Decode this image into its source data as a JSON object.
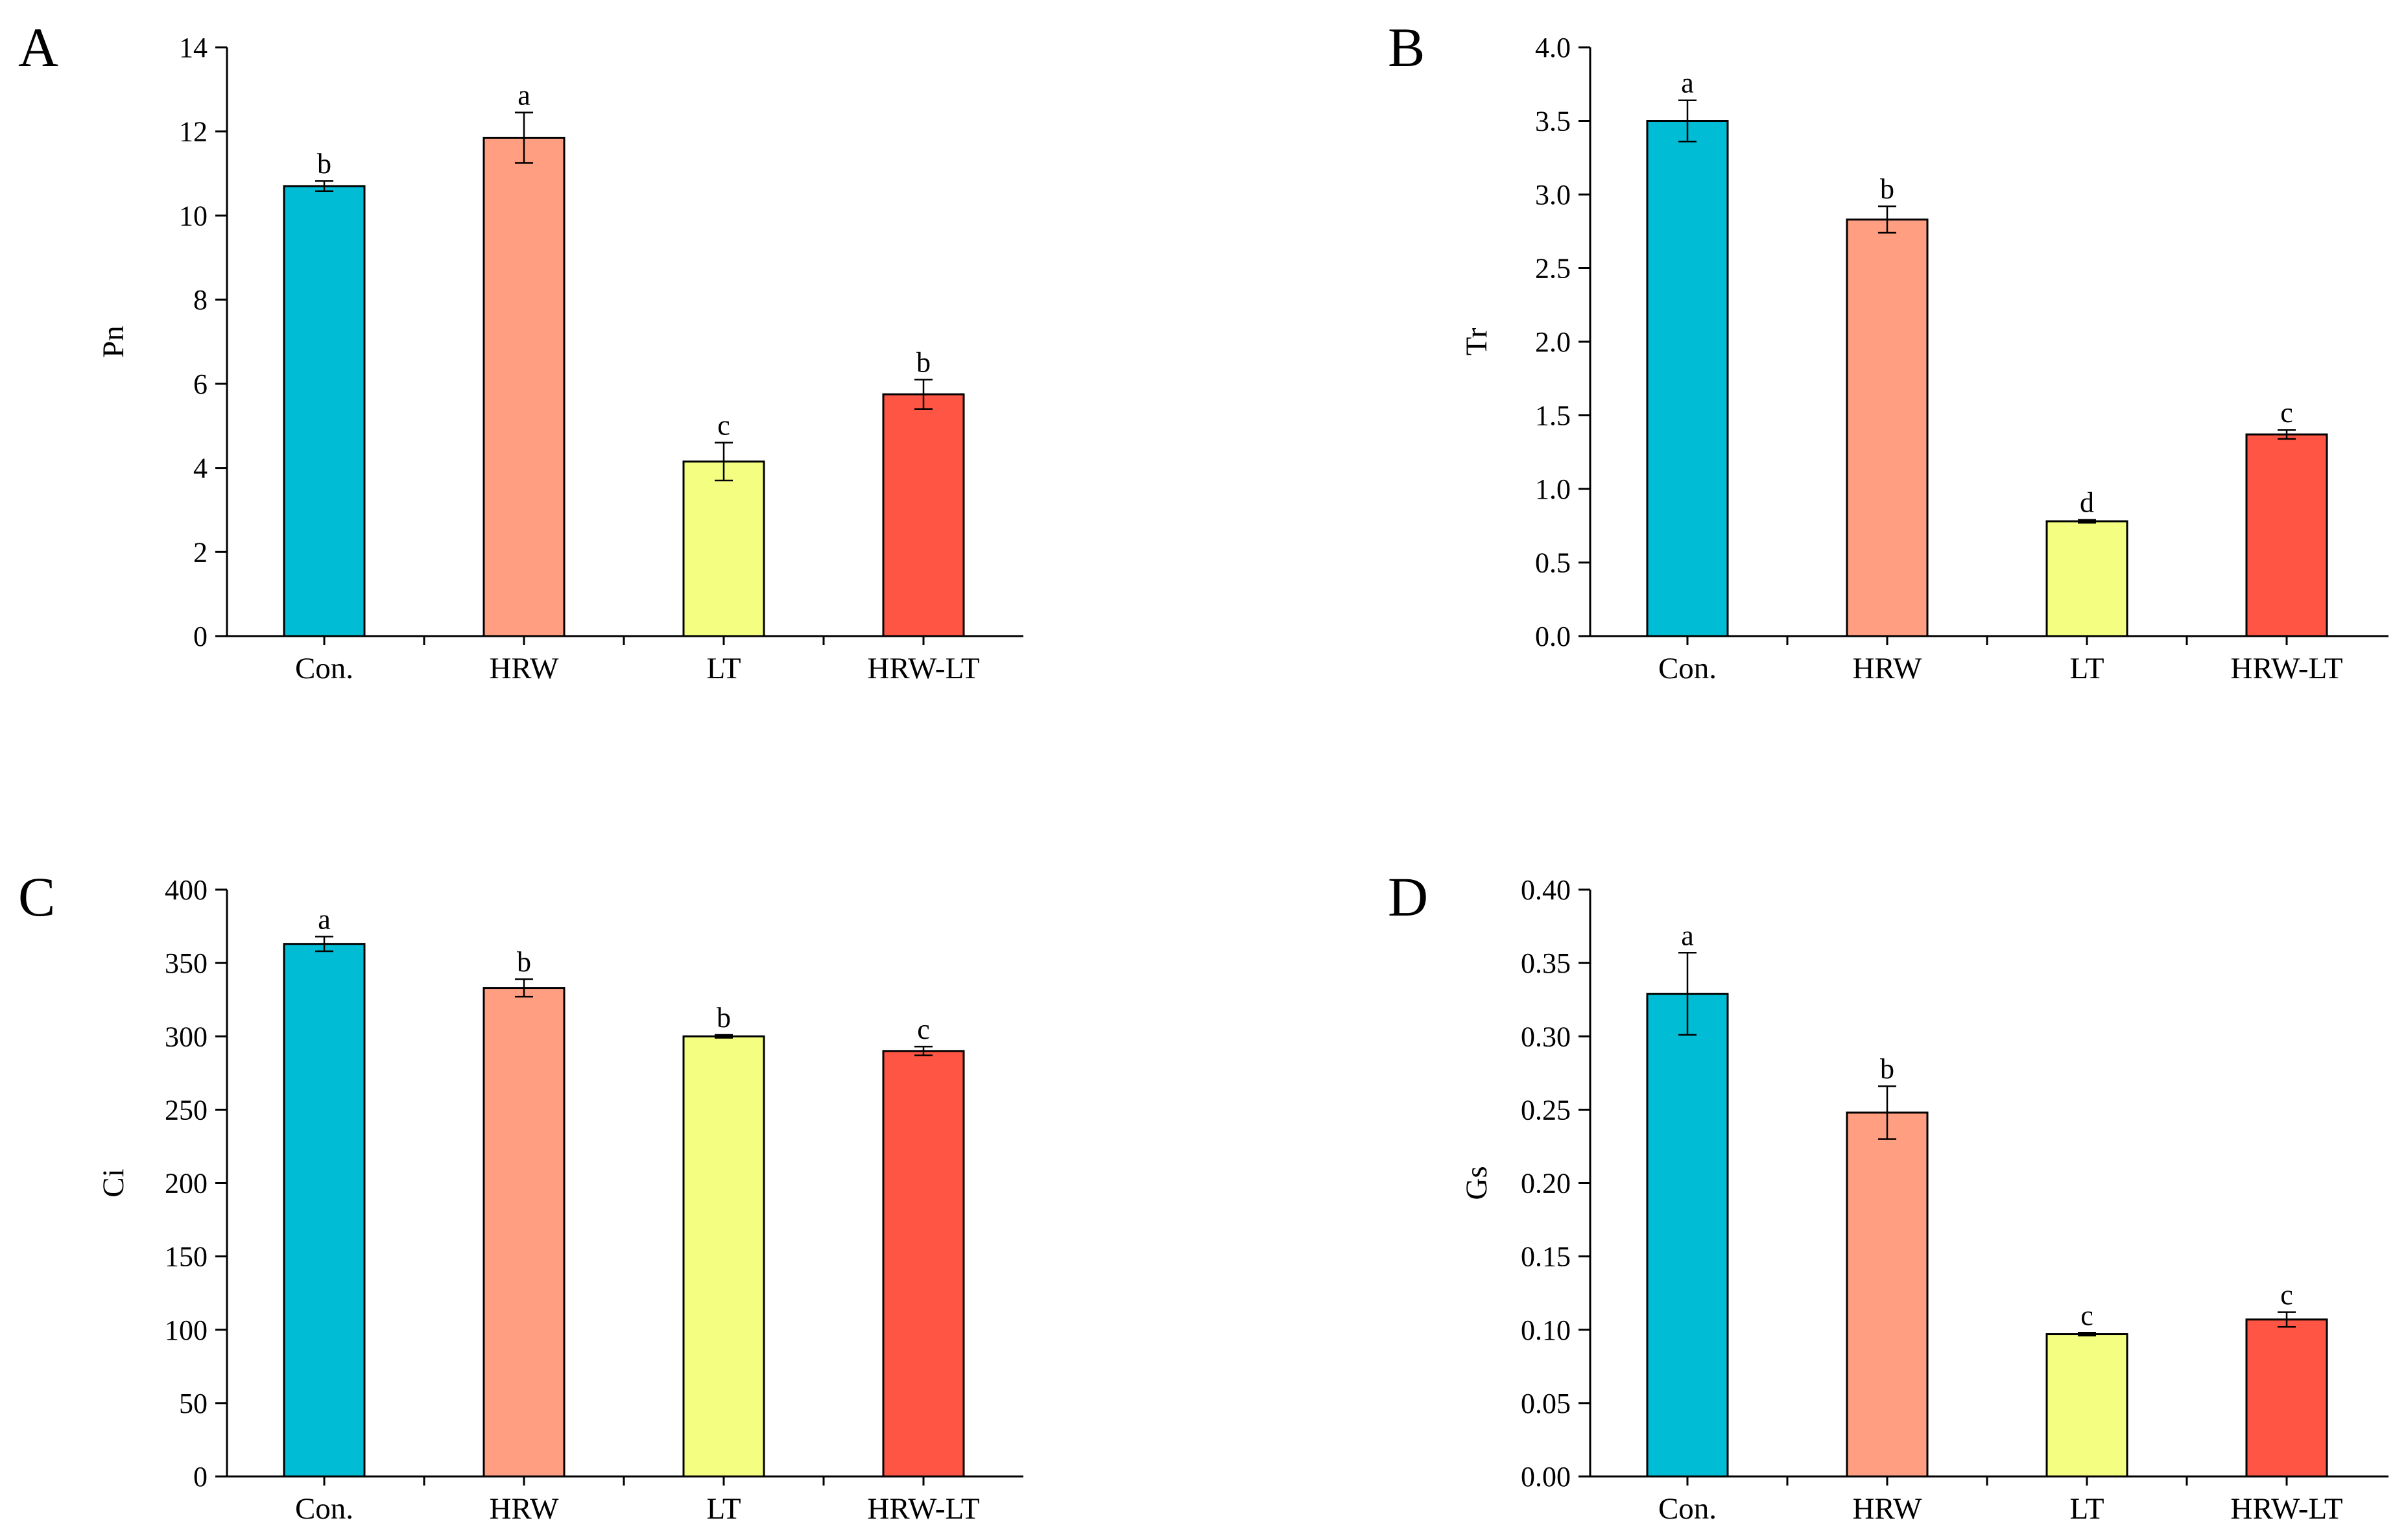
{
  "figure": {
    "panels": [
      "A",
      "B",
      "C",
      "D"
    ]
  },
  "colors": {
    "Con.": "#00BCD4",
    "HRW": "#FF9E80",
    "LT": "#F4FF81",
    "HRW-LT": "#FF5544"
  },
  "chart_data": [
    {
      "panel": "A",
      "type": "bar",
      "categories": [
        "Con.",
        "HRW",
        "LT",
        "HRW-LT"
      ],
      "values": [
        10.7,
        11.85,
        4.15,
        5.75
      ],
      "errors": [
        0.12,
        0.6,
        0.45,
        0.35
      ],
      "significance": [
        "b",
        "a",
        "c",
        "b"
      ],
      "ylabel": "Pn",
      "xlabel": "",
      "ylim": [
        0,
        14
      ],
      "yticks": [
        0,
        2,
        4,
        6,
        8,
        10,
        12,
        14
      ],
      "ytick_labels": [
        "0",
        "2",
        "4",
        "6",
        "8",
        "10",
        "12",
        "14"
      ]
    },
    {
      "panel": "B",
      "type": "bar",
      "categories": [
        "Con.",
        "HRW",
        "LT",
        "HRW-LT"
      ],
      "values": [
        3.5,
        2.83,
        0.78,
        1.37
      ],
      "errors": [
        0.14,
        0.09,
        0.01,
        0.03
      ],
      "significance": [
        "a",
        "b",
        "d",
        "c"
      ],
      "ylabel": "Tr",
      "xlabel": "",
      "ylim": [
        0,
        4.0
      ],
      "yticks": [
        0,
        0.5,
        1.0,
        1.5,
        2.0,
        2.5,
        3.0,
        3.5,
        4.0
      ],
      "ytick_labels": [
        "0.0",
        "0.5",
        "1.0",
        "1.5",
        "2.0",
        "2.5",
        "3.0",
        "3.5",
        "4.0"
      ]
    },
    {
      "panel": "C",
      "type": "bar",
      "categories": [
        "Con.",
        "HRW",
        "LT",
        "HRW-LT"
      ],
      "values": [
        363,
        333,
        300,
        290
      ],
      "errors": [
        5,
        6,
        1,
        3
      ],
      "significance": [
        "a",
        "b",
        "b",
        "c"
      ],
      "ylabel": "Ci",
      "xlabel": "",
      "ylim": [
        0,
        400
      ],
      "yticks": [
        0,
        50,
        100,
        150,
        200,
        250,
        300,
        350,
        400
      ],
      "ytick_labels": [
        "0",
        "50",
        "100",
        "150",
        "200",
        "250",
        "300",
        "350",
        "400"
      ]
    },
    {
      "panel": "D",
      "type": "bar",
      "categories": [
        "Con.",
        "HRW",
        "LT",
        "HRW-LT"
      ],
      "values": [
        0.329,
        0.248,
        0.097,
        0.107
      ],
      "errors": [
        0.028,
        0.018,
        0.001,
        0.005
      ],
      "significance": [
        "a",
        "b",
        "c",
        "c"
      ],
      "ylabel": "Gs",
      "xlabel": "",
      "ylim": [
        0,
        0.4
      ],
      "yticks": [
        0,
        0.05,
        0.1,
        0.15,
        0.2,
        0.25,
        0.3,
        0.35,
        0.4
      ],
      "ytick_labels": [
        "0.00",
        "0.05",
        "0.10",
        "0.15",
        "0.20",
        "0.25",
        "0.30",
        "0.35",
        "0.40"
      ]
    }
  ]
}
